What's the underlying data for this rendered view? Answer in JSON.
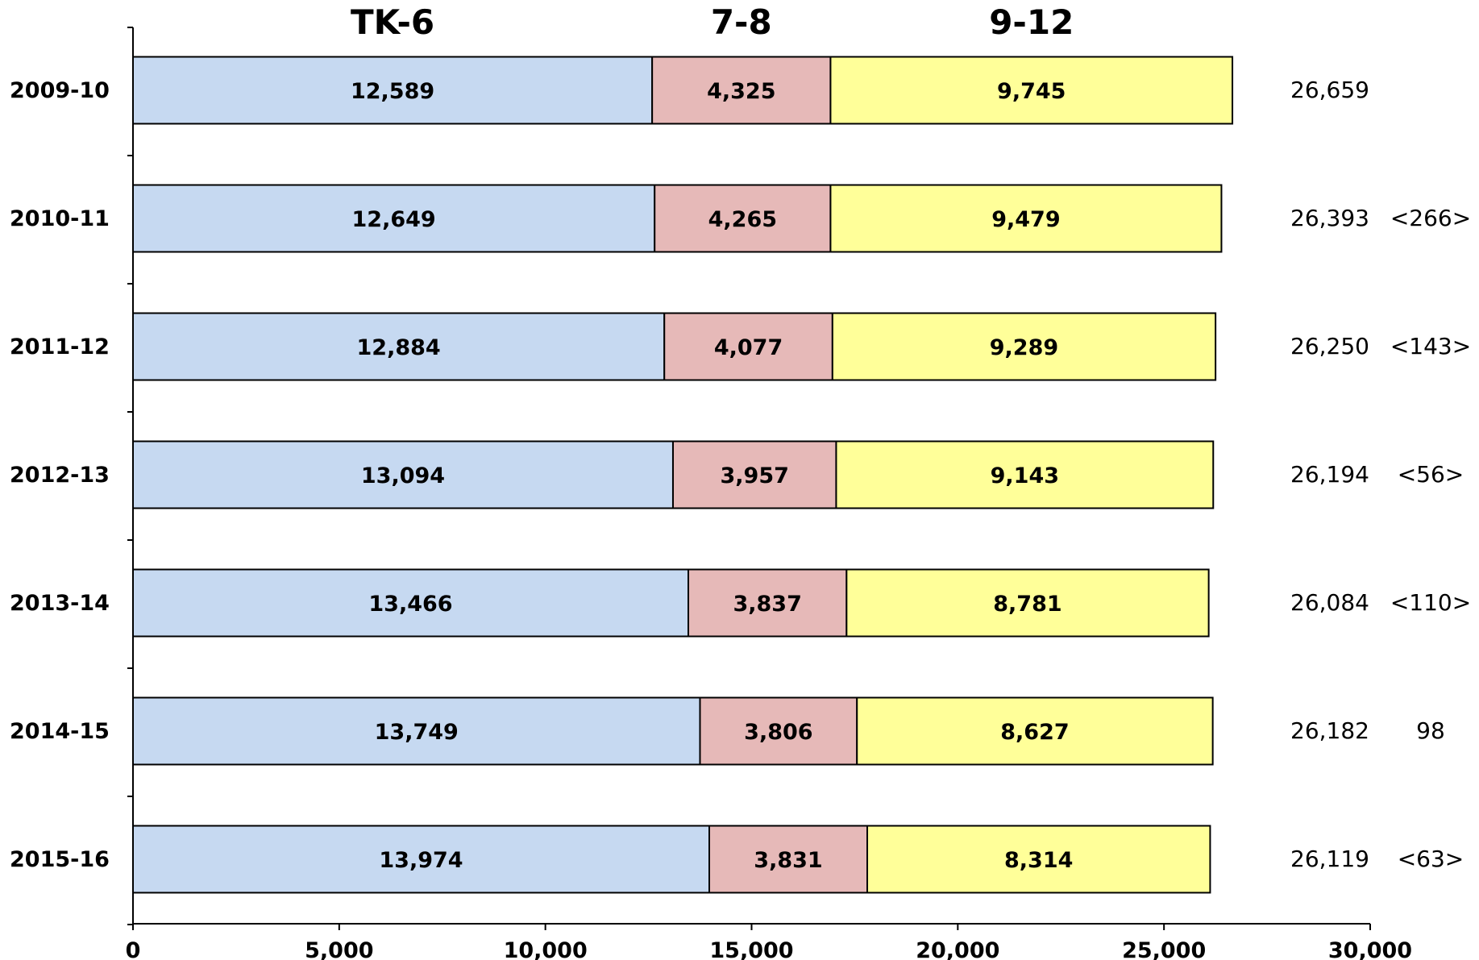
{
  "chart_data": {
    "type": "bar",
    "orientation": "horizontal",
    "stacked": true,
    "title": "",
    "xlabel": "",
    "ylabel": "",
    "xlim": [
      0,
      30000
    ],
    "x_ticks": [
      0,
      5000,
      10000,
      15000,
      20000,
      25000,
      30000
    ],
    "x_tick_labels": [
      "0",
      "5,000",
      "10,000",
      "15,000",
      "20,000",
      "25,000",
      "30,000"
    ],
    "grid": false,
    "legend": "none",
    "column_headers": [
      "TK-6",
      "7-8",
      "9-12"
    ],
    "categories": [
      "2009-10",
      "2010-11",
      "2011-12",
      "2012-13",
      "2013-14",
      "2014-15",
      "2015-16"
    ],
    "series": [
      {
        "name": "TK-6",
        "color": "#C6D9F1",
        "values": [
          12589,
          12649,
          12884,
          13094,
          13466,
          13749,
          13974
        ],
        "labels": [
          "12,589",
          "12,649",
          "12,884",
          "13,094",
          "13,466",
          "13,749",
          "13,974"
        ]
      },
      {
        "name": "7-8",
        "color": "#E6B9B8",
        "values": [
          4325,
          4265,
          4077,
          3957,
          3837,
          3806,
          3831
        ],
        "labels": [
          "4,325",
          "4,265",
          "4,077",
          "3,957",
          "3,837",
          "3,806",
          "3,831"
        ]
      },
      {
        "name": "9-12",
        "color": "#FFFF99",
        "values": [
          9745,
          9479,
          9289,
          9143,
          8781,
          8627,
          8314
        ],
        "labels": [
          "9,745",
          "9,479",
          "9,289",
          "9,143",
          "8,781",
          "8,627",
          "8,314"
        ]
      }
    ],
    "totals": [
      "26,659",
      "26,393",
      "26,250",
      "26,194",
      "26,084",
      "26,182",
      "26,119"
    ],
    "changes": [
      "",
      "<266>",
      "<143>",
      "<56>",
      "<110>",
      "98",
      "<63>"
    ]
  }
}
